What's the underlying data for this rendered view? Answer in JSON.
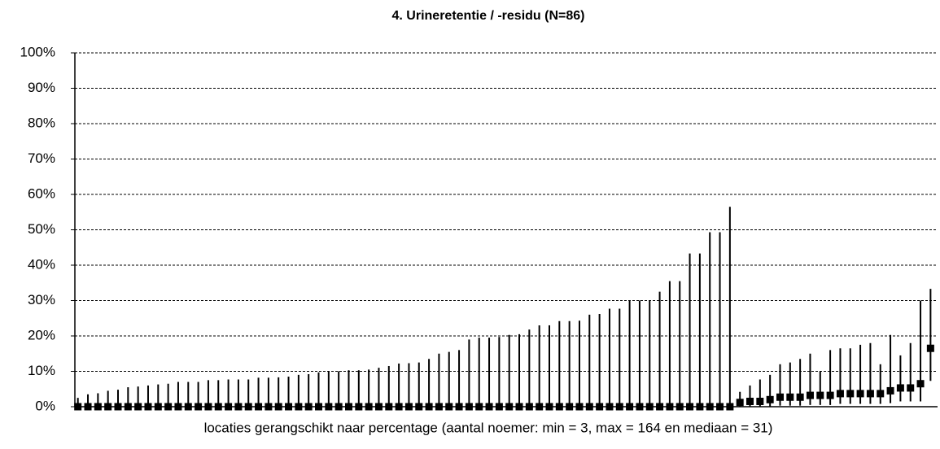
{
  "chart_data": {
    "type": "errorbar",
    "title": "4. Urineretentie  / -residu (N=86)",
    "x_label": "locaties gerangschikt naar percentage (aantal noemer: min = 3, max = 164 en mediaan = 31)",
    "color": "#000000",
    "grid": true,
    "ylim": [
      0,
      100
    ],
    "yticks": [
      {
        "value": 0,
        "label": "0%"
      },
      {
        "value": 10,
        "label": "10%"
      },
      {
        "value": 20,
        "label": "20%"
      },
      {
        "value": 30,
        "label": "30%"
      },
      {
        "value": 40,
        "label": "40%"
      },
      {
        "value": 50,
        "label": "50%"
      },
      {
        "value": 60,
        "label": "60%"
      },
      {
        "value": 70,
        "label": "70%"
      },
      {
        "value": 80,
        "label": "80%"
      },
      {
        "value": 90,
        "label": "90%"
      },
      {
        "value": 100,
        "label": "100%"
      }
    ],
    "values": [
      0,
      0,
      0,
      0,
      0,
      0,
      0,
      0,
      0,
      0,
      0,
      0,
      0,
      0,
      0,
      0,
      0,
      0,
      0,
      0,
      0,
      0,
      0,
      0,
      0,
      0,
      0,
      0,
      0,
      0,
      0,
      0,
      0,
      0,
      0,
      0,
      0,
      0,
      0,
      0,
      0,
      0,
      0,
      0,
      0,
      0,
      0,
      0,
      0,
      0,
      0,
      0,
      0,
      0,
      0,
      0,
      0,
      0,
      0,
      0,
      0,
      0,
      0,
      0,
      0,
      0,
      1.2,
      1.5,
      1.5,
      2,
      2.7,
      2.7,
      2.7,
      3.2,
      3.2,
      3.2,
      3.7,
      3.7,
      3.7,
      3.7,
      3.7,
      4.5,
      5.3,
      5.3,
      6.5,
      16.5
    ],
    "lower": [
      0,
      0,
      0,
      0,
      0,
      0,
      0,
      0,
      0,
      0,
      0,
      0,
      0,
      0,
      0,
      0,
      0,
      0,
      0,
      0,
      0,
      0,
      0,
      0,
      0,
      0,
      0,
      0,
      0,
      0,
      0,
      0,
      0,
      0,
      0,
      0,
      0,
      0,
      0,
      0,
      0,
      0,
      0,
      0,
      0,
      0,
      0,
      0,
      0,
      0,
      0,
      0,
      0,
      0,
      0,
      0,
      0,
      0,
      0,
      0,
      0,
      0,
      0,
      0,
      0,
      0,
      0,
      0,
      0,
      0,
      0.3,
      0.3,
      0.3,
      0.5,
      0.5,
      0.5,
      0.8,
      0.8,
      0.8,
      0.8,
      0.8,
      1,
      1.5,
      1.5,
      1.5,
      7.3
    ],
    "upper": [
      2.5,
      3.5,
      3.8,
      4.5,
      4.8,
      5.5,
      5.7,
      6,
      6.3,
      6.5,
      7,
      7,
      7,
      7.5,
      7.5,
      7.7,
      7.7,
      7.7,
      8.2,
      8.2,
      8.3,
      8.5,
      9,
      9.2,
      9.7,
      10,
      10,
      10.3,
      10.3,
      10.5,
      11,
      11.5,
      12.2,
      12.3,
      12.5,
      13.5,
      15,
      15.5,
      16,
      19,
      19.5,
      19.5,
      19.7,
      20.3,
      20.5,
      21.8,
      23,
      23,
      24.2,
      24.2,
      24.3,
      26,
      26.2,
      27.7,
      27.7,
      30,
      30,
      30,
      32.5,
      35.5,
      35.5,
      43.3,
      43.3,
      49.3,
      49.3,
      56.5,
      4.2,
      6,
      7.7,
      9,
      12,
      12.5,
      13.5,
      15,
      10,
      16,
      16.5,
      16.5,
      17.5,
      18,
      12,
      20.3,
      14.5,
      18,
      30,
      33.3
    ]
  }
}
